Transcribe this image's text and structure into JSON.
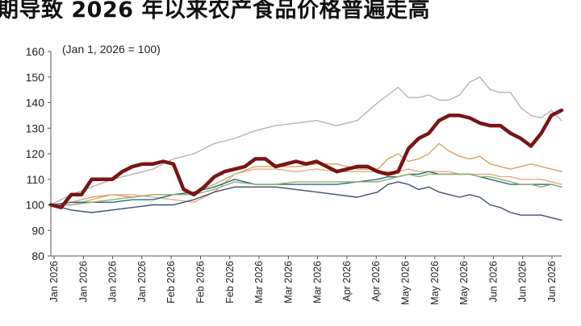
{
  "page_title": "期导致 2026 年以来农产食品价格普遍走高",
  "chart_data": {
    "type": "line",
    "title": "",
    "annotation": "(Jan 1, 2026 = 100)",
    "xlabel": "",
    "ylabel": "",
    "ylim": [
      80,
      160
    ],
    "yticks": [
      80,
      90,
      100,
      110,
      120,
      130,
      140,
      150,
      160
    ],
    "x_labels": [
      "Jan 2026",
      "Jan 2026",
      "Jan 2026",
      "Jan 2026",
      "Feb 2026",
      "Feb 2026",
      "Feb 2026",
      "Mar 2026",
      "Mar 2026",
      "Mar 2026",
      "Apr 2026",
      "Apr 2026",
      "May 2026",
      "May 2026",
      "May 2026",
      "Jun 2026",
      "Jun 2026",
      "Jun 2026"
    ],
    "legend": "none",
    "grid": false,
    "series": [
      {
        "color": "#7a1414",
        "width": 4.5,
        "values": [
          [
            0,
            100
          ],
          [
            2,
            99
          ],
          [
            4,
            104
          ],
          [
            6,
            104
          ],
          [
            8,
            110
          ],
          [
            10,
            110
          ],
          [
            12,
            110
          ],
          [
            14,
            113
          ],
          [
            16,
            115
          ],
          [
            18,
            116
          ],
          [
            20,
            116
          ],
          [
            22,
            117
          ],
          [
            24,
            116
          ],
          [
            26,
            106
          ],
          [
            28,
            104
          ],
          [
            30,
            107
          ],
          [
            32,
            111
          ],
          [
            34,
            113
          ],
          [
            36,
            114
          ],
          [
            38,
            115
          ],
          [
            40,
            118
          ],
          [
            42,
            118
          ],
          [
            44,
            115
          ],
          [
            46,
            116
          ],
          [
            48,
            117
          ],
          [
            50,
            116
          ],
          [
            52,
            117
          ],
          [
            54,
            115
          ],
          [
            56,
            113
          ],
          [
            58,
            114
          ],
          [
            60,
            115
          ],
          [
            62,
            115
          ],
          [
            64,
            113
          ],
          [
            66,
            112
          ],
          [
            68,
            113
          ],
          [
            70,
            122
          ],
          [
            72,
            126
          ],
          [
            74,
            128
          ],
          [
            76,
            133
          ],
          [
            78,
            135
          ],
          [
            80,
            135
          ],
          [
            82,
            134
          ],
          [
            84,
            132
          ],
          [
            86,
            131
          ],
          [
            88,
            131
          ],
          [
            90,
            128
          ],
          [
            92,
            126
          ],
          [
            94,
            123
          ],
          [
            96,
            128
          ],
          [
            98,
            135
          ],
          [
            100,
            137
          ]
        ]
      },
      {
        "color": "#b4b4b4",
        "width": 1.4,
        "values": [
          [
            0,
            100
          ],
          [
            4,
            104
          ],
          [
            8,
            107
          ],
          [
            12,
            110
          ],
          [
            16,
            112
          ],
          [
            20,
            114
          ],
          [
            24,
            118
          ],
          [
            28,
            120
          ],
          [
            32,
            124
          ],
          [
            36,
            126
          ],
          [
            40,
            129
          ],
          [
            44,
            131
          ],
          [
            48,
            132
          ],
          [
            52,
            133
          ],
          [
            56,
            131
          ],
          [
            60,
            133
          ],
          [
            64,
            140
          ],
          [
            66,
            143
          ],
          [
            68,
            146
          ],
          [
            70,
            142
          ],
          [
            72,
            142
          ],
          [
            74,
            143
          ],
          [
            76,
            141
          ],
          [
            78,
            141
          ],
          [
            80,
            143
          ],
          [
            82,
            148
          ],
          [
            84,
            150
          ],
          [
            86,
            145
          ],
          [
            88,
            144
          ],
          [
            90,
            144
          ],
          [
            92,
            138
          ],
          [
            94,
            135
          ],
          [
            96,
            134
          ],
          [
            98,
            137
          ],
          [
            100,
            133
          ]
        ]
      },
      {
        "color": "#d4a460",
        "width": 1.4,
        "values": [
          [
            0,
            100
          ],
          [
            4,
            101
          ],
          [
            8,
            103
          ],
          [
            12,
            104
          ],
          [
            16,
            103
          ],
          [
            20,
            104
          ],
          [
            24,
            104
          ],
          [
            28,
            105
          ],
          [
            32,
            108
          ],
          [
            36,
            112
          ],
          [
            40,
            115
          ],
          [
            44,
            115
          ],
          [
            48,
            115
          ],
          [
            52,
            116
          ],
          [
            56,
            116
          ],
          [
            60,
            114
          ],
          [
            64,
            114
          ],
          [
            66,
            118
          ],
          [
            68,
            120
          ],
          [
            70,
            117
          ],
          [
            72,
            118
          ],
          [
            74,
            120
          ],
          [
            76,
            124
          ],
          [
            78,
            121
          ],
          [
            80,
            119
          ],
          [
            82,
            118
          ],
          [
            84,
            119
          ],
          [
            86,
            116
          ],
          [
            88,
            115
          ],
          [
            90,
            114
          ],
          [
            92,
            115
          ],
          [
            94,
            116
          ],
          [
            96,
            115
          ],
          [
            98,
            114
          ],
          [
            100,
            113
          ]
        ]
      },
      {
        "color": "#e7aa86",
        "width": 1.4,
        "values": [
          [
            0,
            100
          ],
          [
            4,
            100
          ],
          [
            8,
            102
          ],
          [
            12,
            104
          ],
          [
            16,
            104
          ],
          [
            20,
            103
          ],
          [
            24,
            102
          ],
          [
            28,
            101
          ],
          [
            32,
            105
          ],
          [
            36,
            112
          ],
          [
            40,
            114
          ],
          [
            44,
            114
          ],
          [
            48,
            113
          ],
          [
            52,
            114
          ],
          [
            56,
            113
          ],
          [
            60,
            113
          ],
          [
            64,
            113
          ],
          [
            66,
            113
          ],
          [
            68,
            113
          ],
          [
            70,
            114
          ],
          [
            72,
            113
          ],
          [
            74,
            113
          ],
          [
            76,
            113
          ],
          [
            78,
            113
          ],
          [
            80,
            112
          ],
          [
            82,
            112
          ],
          [
            84,
            112
          ],
          [
            86,
            112
          ],
          [
            88,
            111
          ],
          [
            90,
            111
          ],
          [
            92,
            110
          ],
          [
            94,
            110
          ],
          [
            96,
            110
          ],
          [
            98,
            109
          ],
          [
            100,
            108
          ]
        ]
      },
      {
        "color": "#1f6d84",
        "width": 1.4,
        "values": [
          [
            0,
            100
          ],
          [
            4,
            101
          ],
          [
            8,
            101
          ],
          [
            12,
            101
          ],
          [
            16,
            102
          ],
          [
            20,
            102
          ],
          [
            24,
            104
          ],
          [
            28,
            105
          ],
          [
            32,
            107
          ],
          [
            36,
            110
          ],
          [
            40,
            108
          ],
          [
            44,
            108
          ],
          [
            48,
            108
          ],
          [
            52,
            108
          ],
          [
            56,
            108
          ],
          [
            60,
            109
          ],
          [
            64,
            110
          ],
          [
            66,
            111
          ],
          [
            68,
            111
          ],
          [
            70,
            112
          ],
          [
            72,
            112
          ],
          [
            74,
            113
          ],
          [
            76,
            112
          ],
          [
            78,
            112
          ],
          [
            80,
            112
          ],
          [
            82,
            112
          ],
          [
            84,
            111
          ],
          [
            86,
            110
          ],
          [
            88,
            109
          ],
          [
            90,
            108
          ],
          [
            92,
            108
          ],
          [
            94,
            108
          ],
          [
            96,
            108
          ],
          [
            98,
            108
          ],
          [
            100,
            107
          ]
        ]
      },
      {
        "color": "#9aab6a",
        "width": 1.4,
        "values": [
          [
            0,
            100
          ],
          [
            4,
            100
          ],
          [
            8,
            101
          ],
          [
            12,
            102
          ],
          [
            16,
            103
          ],
          [
            20,
            104
          ],
          [
            24,
            104
          ],
          [
            28,
            104
          ],
          [
            32,
            106
          ],
          [
            36,
            109
          ],
          [
            40,
            108
          ],
          [
            44,
            108
          ],
          [
            48,
            109
          ],
          [
            52,
            109
          ],
          [
            56,
            109
          ],
          [
            60,
            109
          ],
          [
            64,
            109
          ],
          [
            66,
            110
          ],
          [
            68,
            111
          ],
          [
            70,
            112
          ],
          [
            72,
            111
          ],
          [
            74,
            112
          ],
          [
            76,
            112
          ],
          [
            78,
            112
          ],
          [
            80,
            112
          ],
          [
            82,
            112
          ],
          [
            84,
            111
          ],
          [
            86,
            111
          ],
          [
            88,
            110
          ],
          [
            90,
            109
          ],
          [
            92,
            108
          ],
          [
            94,
            108
          ],
          [
            96,
            107
          ],
          [
            98,
            108
          ],
          [
            100,
            107
          ]
        ]
      },
      {
        "color": "#3d4f6b",
        "width": 1.4,
        "values": [
          [
            0,
            100
          ],
          [
            4,
            98
          ],
          [
            8,
            97
          ],
          [
            12,
            98
          ],
          [
            16,
            99
          ],
          [
            20,
            100
          ],
          [
            24,
            100
          ],
          [
            28,
            102
          ],
          [
            32,
            105
          ],
          [
            36,
            107
          ],
          [
            40,
            107
          ],
          [
            44,
            107
          ],
          [
            48,
            106
          ],
          [
            52,
            105
          ],
          [
            56,
            104
          ],
          [
            60,
            103
          ],
          [
            64,
            105
          ],
          [
            66,
            108
          ],
          [
            68,
            109
          ],
          [
            70,
            108
          ],
          [
            72,
            106
          ],
          [
            74,
            107
          ],
          [
            76,
            105
          ],
          [
            78,
            104
          ],
          [
            80,
            103
          ],
          [
            82,
            104
          ],
          [
            84,
            103
          ],
          [
            86,
            100
          ],
          [
            88,
            99
          ],
          [
            90,
            97
          ],
          [
            92,
            96
          ],
          [
            94,
            96
          ],
          [
            96,
            96
          ],
          [
            98,
            95
          ],
          [
            100,
            94
          ]
        ]
      }
    ]
  }
}
